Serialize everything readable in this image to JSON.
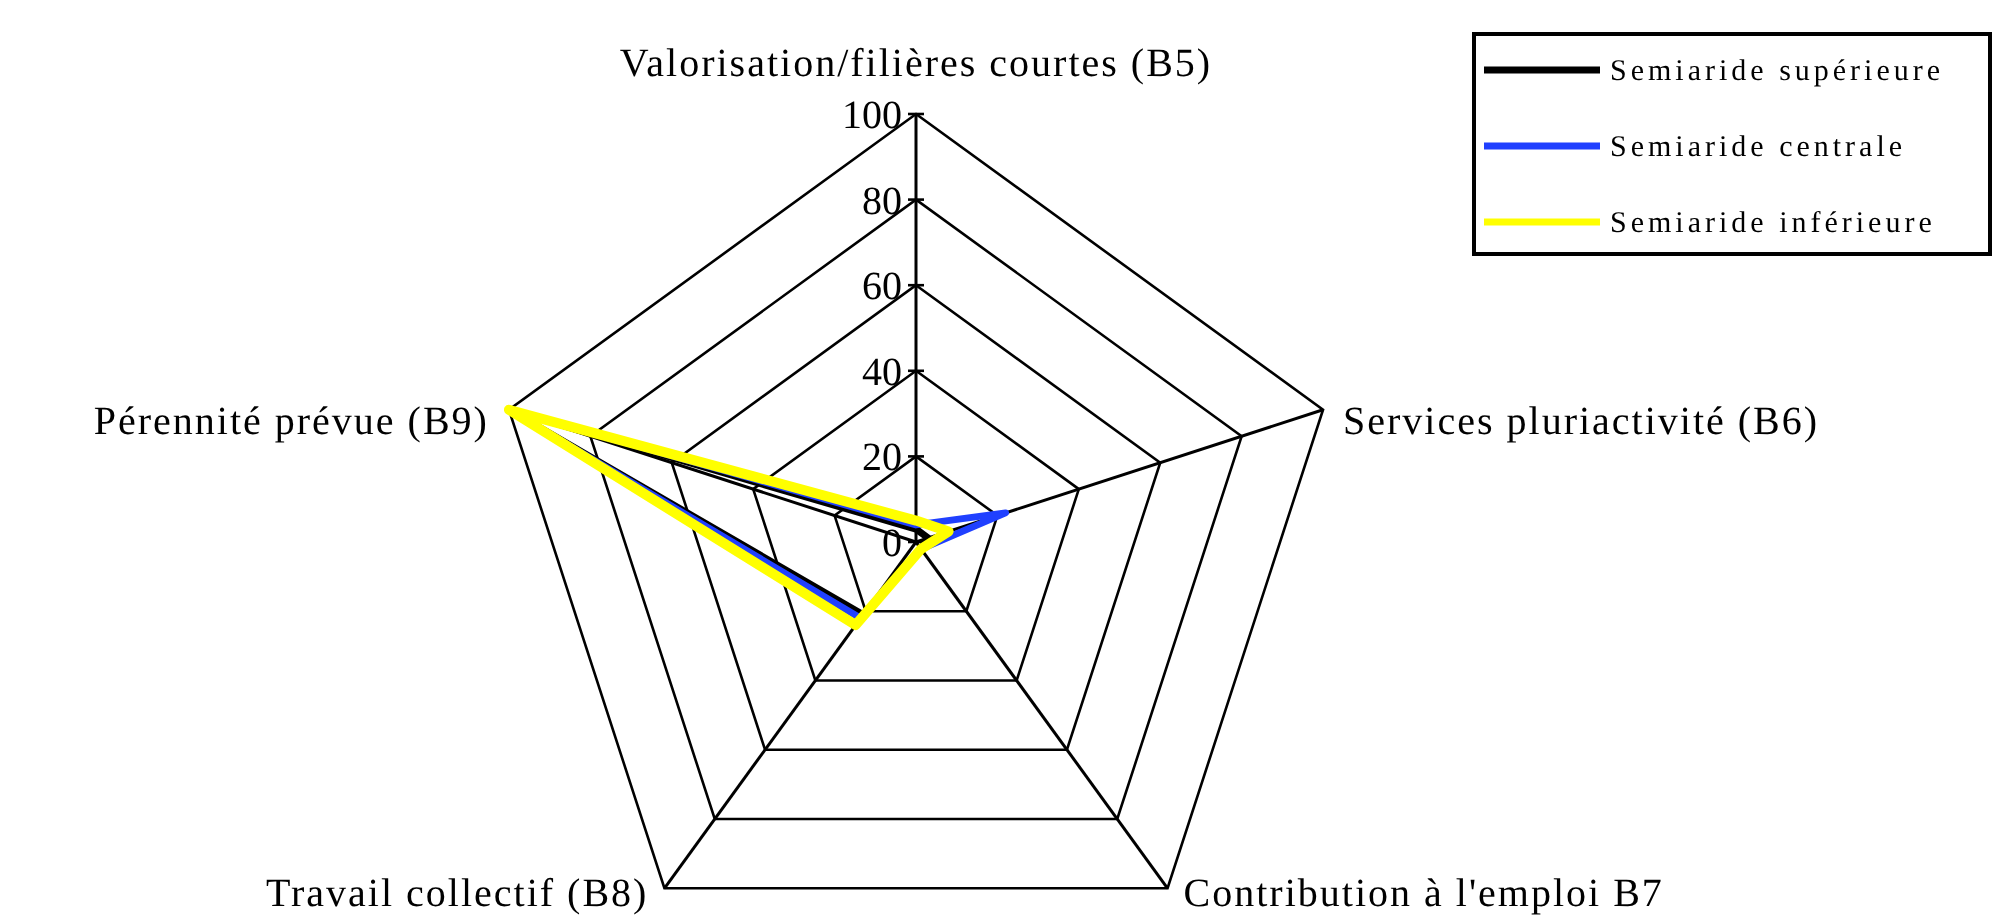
{
  "chart_data": {
    "type": "radar",
    "categories": [
      "Valorisation/filières courtes (B5)",
      "Services pluriactivité (B6)",
      "Contribution à l'emploi B7",
      "Travail collectif (B8)",
      "Pérennité prévue (B9)"
    ],
    "ylim": [
      0,
      100
    ],
    "yticks": [
      0,
      20,
      40,
      60,
      80,
      100
    ],
    "grid": true,
    "legend": "top right",
    "series": [
      {
        "name": "Semiaride supérieure",
        "color": "#000000",
        "values": [
          3,
          3,
          2,
          21,
          100
        ]
      },
      {
        "name": "Semiaride centrale",
        "color": "#2040ff",
        "values": [
          4,
          22,
          2,
          22,
          100
        ]
      },
      {
        "name": "Semiaride inférieure",
        "color": "#ffff00",
        "values": [
          5,
          8,
          2,
          24,
          100
        ]
      }
    ]
  }
}
